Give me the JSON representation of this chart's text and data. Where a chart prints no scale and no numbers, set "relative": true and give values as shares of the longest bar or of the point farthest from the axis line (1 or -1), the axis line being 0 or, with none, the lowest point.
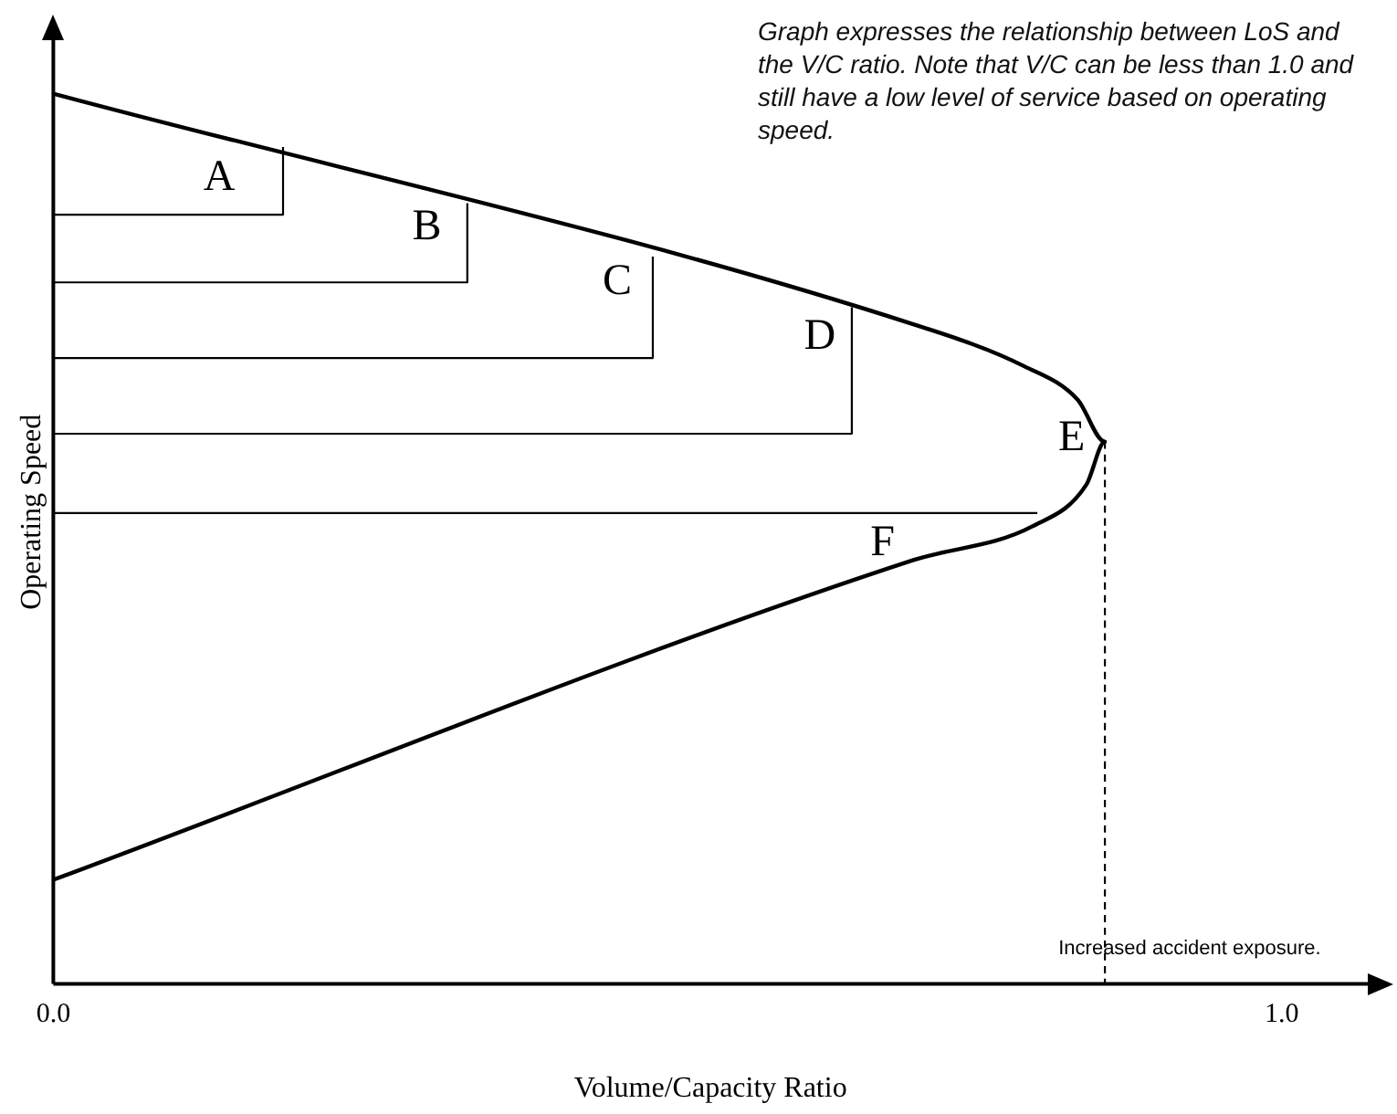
{
  "chart_data": {
    "type": "line",
    "relative": true,
    "xlabel": "Volume/Capacity Ratio",
    "ylabel": "Operating Speed",
    "xlim": [
      0,
      1.07
    ],
    "xticks": [
      {
        "value": 0,
        "label": "0.0"
      },
      {
        "value": 1,
        "label": "1.0"
      }
    ],
    "tick_labels": "x",
    "grid": false,
    "legend": false,
    "marker": "none",
    "series": [
      {
        "color": "#000000",
        "line_style": "solid",
        "x": [
          0,
          0.7,
          0.79,
          0.834,
          0.856,
          0.841,
          0.797,
          0.7,
          0
        ],
        "values": [
          1,
          0.741,
          0.694,
          0.656,
          0.609,
          0.561,
          0.514,
          0.476,
          0.117
        ]
      },
      {
        "color": "#000000",
        "line_style": "solid",
        "x": [
          0,
          0.187,
          0.187
        ],
        "values": [
          0.864,
          0.864,
          0.94
        ]
      },
      {
        "color": "#000000",
        "line_style": "solid",
        "x": [
          0,
          0.337,
          0.337
        ],
        "values": [
          0.788,
          0.788,
          0.877
        ]
      },
      {
        "color": "#000000",
        "line_style": "solid",
        "x": [
          0,
          0.488,
          0.488
        ],
        "values": [
          0.703,
          0.703,
          0.817
        ]
      },
      {
        "color": "#000000",
        "line_style": "solid",
        "x": [
          0,
          0.65,
          0.65
        ],
        "values": [
          0.618,
          0.618,
          0.76
        ]
      },
      {
        "color": "#000000",
        "line_style": "solid",
        "x": [
          0,
          0.801
        ],
        "values": [
          0.529,
          0.529
        ]
      },
      {
        "color": "#000000",
        "line_style": "dashed",
        "x": [
          0.856,
          0.856
        ],
        "values": [
          0.609,
          0
        ]
      }
    ],
    "annotations": [
      "Graph expresses the relationship between LoS and the V/C ratio. Note that V/C can be less than 1.0 and still have a low level of service based on operating speed.",
      "A",
      "B",
      "C",
      "D",
      "E",
      "F",
      "Increased accident exposure."
    ]
  }
}
